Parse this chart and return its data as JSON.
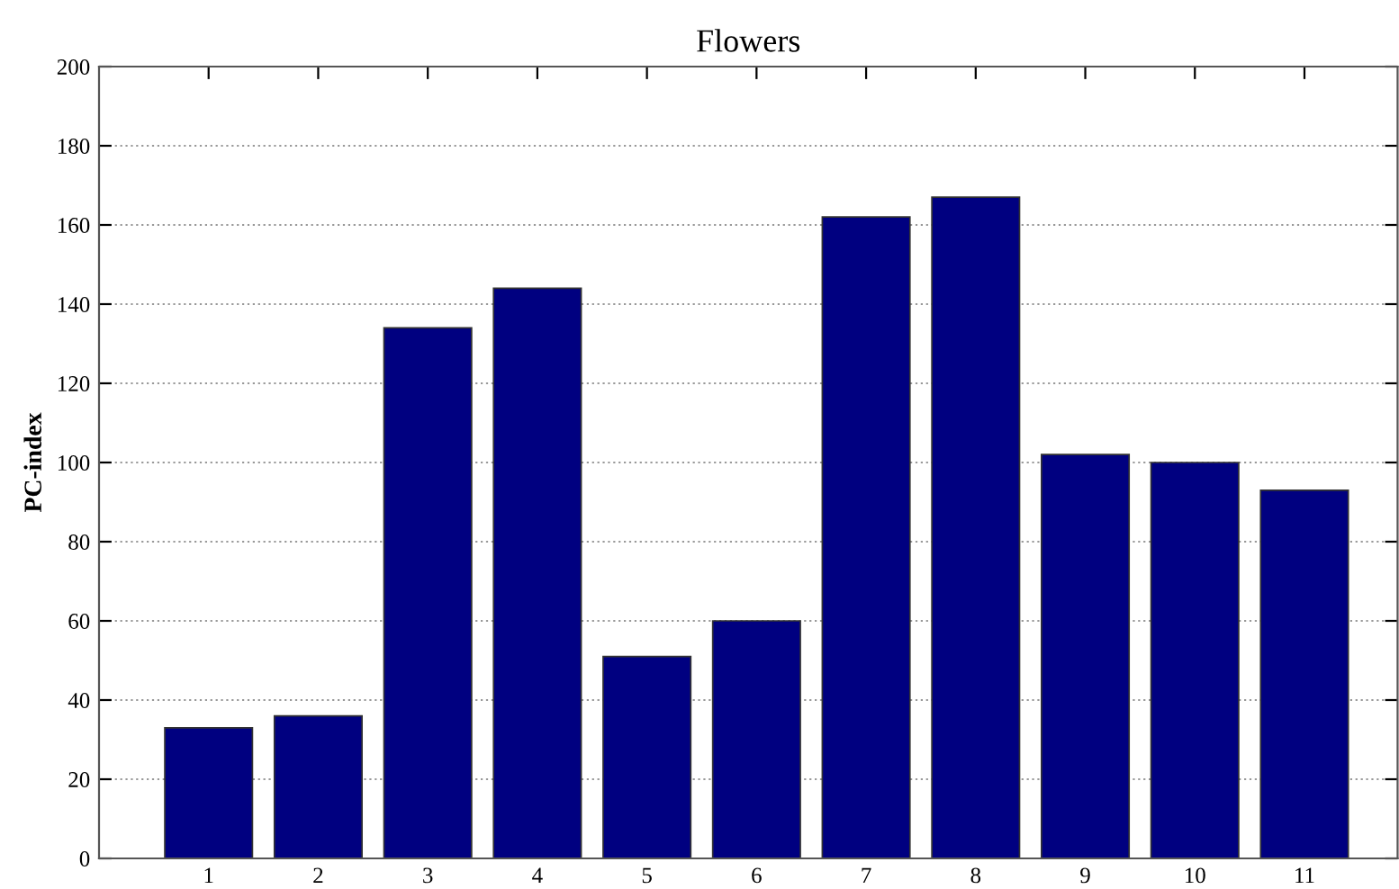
{
  "chart_data": {
    "type": "bar",
    "title": "Flowers",
    "ylabel": "PC-index",
    "categories": [
      "1",
      "2",
      "3",
      "4",
      "5",
      "6",
      "7",
      "8",
      "9",
      "10",
      "11"
    ],
    "values": [
      33,
      36,
      134,
      144,
      51,
      60,
      162,
      167,
      102,
      100,
      93
    ],
    "color": "#000080",
    "ylim": [
      0,
      200
    ],
    "yticks": [
      0,
      20,
      40,
      60,
      80,
      100,
      120,
      140,
      160,
      180,
      200
    ],
    "grid": "y",
    "line_style": "dotted"
  }
}
